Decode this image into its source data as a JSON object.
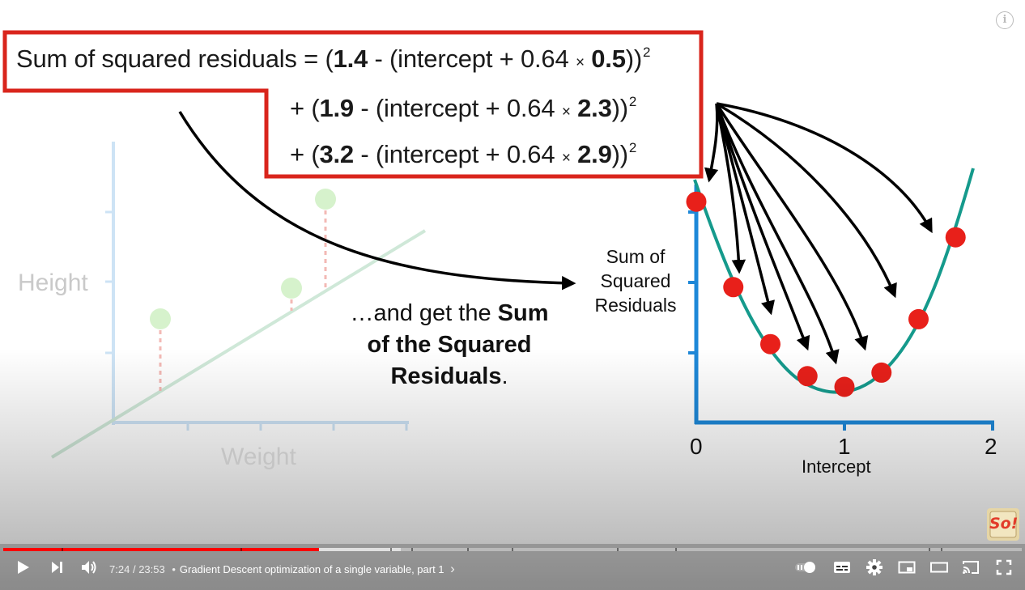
{
  "video": {
    "equation": {
      "line1": {
        "prefix": "Sum of squared residuals = (",
        "obs": "1.4",
        "mid": " - (intercept + 0.64 ",
        "times": "×",
        "val": "0.5",
        "close": "))",
        "exp": "2"
      },
      "line2": {
        "prefix": "+ (",
        "obs": "1.9",
        "mid": " - (intercept + 0.64 ",
        "times": "×",
        "val": "2.3",
        "close": "))",
        "exp": "2"
      },
      "line3": {
        "prefix": "+ (",
        "obs": "3.2",
        "mid": " - (intercept + 0.64 ",
        "times": "×",
        "val": "2.9",
        "close": "))",
        "exp": "2"
      }
    },
    "left_chart": {
      "ylabel": "Height",
      "xlabel": "Weight"
    },
    "caption": {
      "pre": "…and get the ",
      "bold1": "Sum",
      "bold2": "of the Squared",
      "bold3": "Residuals",
      "post": "."
    },
    "right_chart": {
      "ylabel_line1": "Sum of",
      "ylabel_line2": "Squared",
      "ylabel_line3": "Residuals",
      "xlabel": "Intercept",
      "xticks": [
        "0",
        "1",
        "2"
      ]
    },
    "colors": {
      "box_border": "#d9251c",
      "curve": "#159a8c",
      "axis": "#1e88d8",
      "dot": "#e8201a",
      "faded_line": "#cfe8d8",
      "faded_axis": "#cde3f5"
    },
    "info_icon": "i",
    "logo_text": "So!"
  },
  "chart_data": {
    "type": "scatter",
    "title": "",
    "xlabel": "Intercept",
    "ylabel": "Sum of Squared Residuals",
    "xlim": [
      0,
      2
    ],
    "x": [
      0,
      0.25,
      0.5,
      0.75,
      1.0,
      1.25,
      1.5,
      1.75
    ],
    "y": [
      3.1,
      1.9,
      1.1,
      0.65,
      0.5,
      0.7,
      1.45,
      2.6
    ]
  },
  "controls": {
    "time_current": "7:24",
    "time_total": "23:53",
    "time_sep": "/",
    "bullet": "•",
    "chapter": "Gradient Descent optimization of a single variable, part 1",
    "chevron": "›",
    "progress_played": 0.31,
    "progress_loaded": 0.39,
    "icons": [
      "play-icon",
      "next-icon",
      "volume-icon",
      "autoplay-toggle-icon",
      "subtitles-icon",
      "settings-icon",
      "miniplayer-icon",
      "theater-icon",
      "cast-icon",
      "fullscreen-icon"
    ]
  }
}
